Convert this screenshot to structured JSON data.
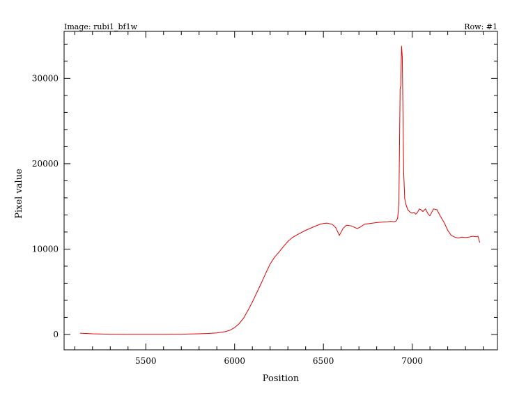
{
  "header": {
    "image_label": "Image: rubi1_bf1w",
    "row_label": "Row: #1"
  },
  "chart_data": {
    "type": "line",
    "title": "",
    "xlabel": "Position",
    "ylabel": "Pixel value",
    "xlim": [
      5040,
      7480
    ],
    "ylim": [
      -1800,
      35500
    ],
    "x_ticks": [
      5500,
      6000,
      6500,
      7000
    ],
    "y_ticks": [
      0,
      10000,
      20000,
      30000
    ],
    "x_minor_step": 100,
    "y_minor_step": 2000,
    "grid": false,
    "legend": "none",
    "line_color": "#e00000",
    "series": [
      {
        "x": [
          5130,
          5200,
          5300,
          5400,
          5500,
          5600,
          5700,
          5750,
          5800,
          5850,
          5900,
          5950,
          5975,
          6000,
          6025,
          6050,
          6075,
          6100,
          6125,
          6150,
          6175,
          6200,
          6225,
          6250,
          6275,
          6300,
          6325,
          6350,
          6400,
          6450,
          6480,
          6500,
          6520,
          6550,
          6570,
          6590,
          6610,
          6630,
          6660,
          6690,
          6710,
          6730,
          6760,
          6800,
          6830,
          6860,
          6880,
          6900,
          6910,
          6918,
          6925,
          6932,
          6936,
          6940,
          6944,
          6948,
          6952,
          6958,
          6965,
          6975,
          6990,
          7000,
          7010,
          7020,
          7030,
          7040,
          7050,
          7060,
          7075,
          7090,
          7100,
          7110,
          7120,
          7140,
          7160,
          7180,
          7200,
          7220,
          7240,
          7260,
          7280,
          7300,
          7320,
          7340,
          7360,
          7370,
          7375,
          7380
        ],
        "y": [
          150,
          80,
          30,
          20,
          20,
          20,
          30,
          50,
          80,
          120,
          180,
          350,
          500,
          800,
          1250,
          1900,
          2800,
          3800,
          4900,
          6000,
          7150,
          8250,
          9050,
          9650,
          10300,
          10900,
          11350,
          11650,
          12200,
          12650,
          12900,
          13000,
          13050,
          12900,
          12500,
          11600,
          12400,
          12800,
          12700,
          12400,
          12600,
          12900,
          13000,
          13100,
          13150,
          13200,
          13250,
          13200,
          13300,
          13600,
          15200,
          28800,
          29200,
          33800,
          32500,
          25800,
          19000,
          15900,
          15200,
          14600,
          14300,
          14200,
          14300,
          14100,
          14300,
          14700,
          14600,
          14400,
          14700,
          14100,
          13900,
          14300,
          14700,
          14600,
          13800,
          13100,
          12200,
          11600,
          11400,
          11300,
          11400,
          11350,
          11400,
          11500,
          11450,
          11500,
          11200,
          10750
        ]
      }
    ]
  }
}
